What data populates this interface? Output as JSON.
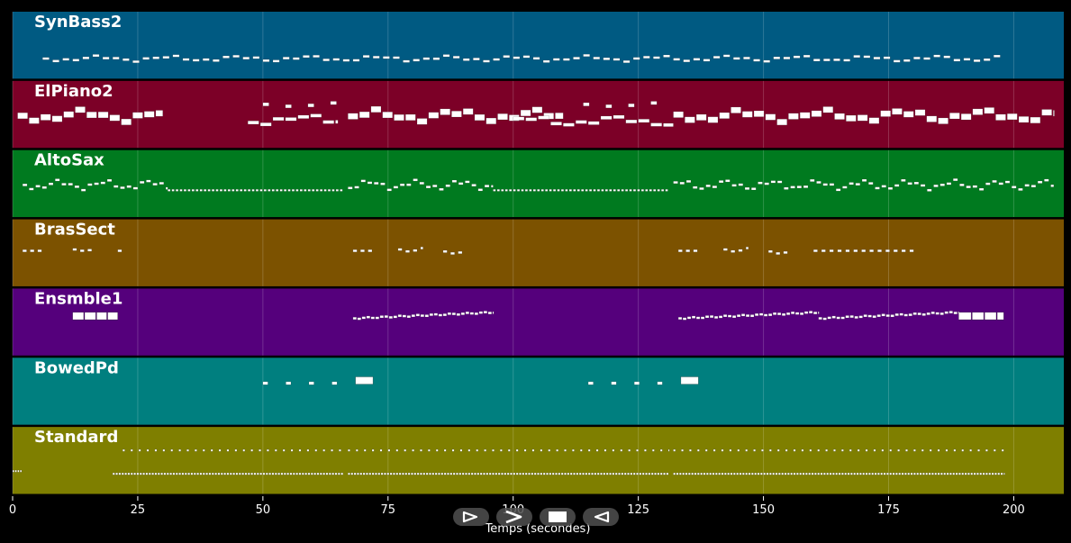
{
  "chart_data": {
    "type": "piano-roll",
    "xlabel": "Temps (secondes)",
    "xlim": [
      0,
      210
    ],
    "x_ticks": [
      0,
      25,
      50,
      75,
      100,
      125,
      150,
      175,
      200
    ],
    "grid": true,
    "tracks": [
      {
        "name": "SynBass2",
        "color": "#005a82",
        "segments": [
          {
            "start": 6,
            "end": 198,
            "style": "wave",
            "note_len": 1.3,
            "step": 2.0,
            "amp": 0.03,
            "center": 0.7,
            "h": 0.035
          }
        ],
        "blocks": []
      },
      {
        "name": "ElPiano2",
        "color": "#7c0027",
        "segments": [
          {
            "start": 1,
            "end": 30,
            "style": "wave",
            "note_len": 2.0,
            "step": 2.3,
            "amp": 0.06,
            "center": 0.52,
            "h": 0.09
          },
          {
            "start": 47,
            "end": 65,
            "style": "wave",
            "note_len": 2.2,
            "step": 2.5,
            "amp": 0.05,
            "center": 0.58,
            "h": 0.05
          },
          {
            "start": 50,
            "end": 65,
            "style": "sparse",
            "note_len": 1.2,
            "step": 4.5,
            "amp": 0.03,
            "center": 0.35,
            "h": 0.05
          },
          {
            "start": 67,
            "end": 110,
            "style": "wave",
            "note_len": 2.0,
            "step": 2.3,
            "amp": 0.06,
            "center": 0.52,
            "h": 0.09
          },
          {
            "start": 100,
            "end": 132,
            "style": "wave",
            "note_len": 2.2,
            "step": 2.5,
            "amp": 0.05,
            "center": 0.6,
            "h": 0.05
          },
          {
            "start": 114,
            "end": 130,
            "style": "sparse",
            "note_len": 1.2,
            "step": 4.5,
            "amp": 0.03,
            "center": 0.35,
            "h": 0.05
          },
          {
            "start": 132,
            "end": 208,
            "style": "wave",
            "note_len": 2.0,
            "step": 2.3,
            "amp": 0.06,
            "center": 0.52,
            "h": 0.09
          }
        ],
        "blocks": []
      },
      {
        "name": "AltoSax",
        "color": "#007a1f",
        "segments": [
          {
            "start": 2,
            "end": 31,
            "style": "wave",
            "note_len": 0.9,
            "step": 1.3,
            "amp": 0.05,
            "center": 0.52,
            "h": 0.035
          },
          {
            "start": 31,
            "end": 66,
            "style": "dense",
            "note_len": 0.5,
            "step": 0.8,
            "amp": 0.0,
            "center": 0.6,
            "h": 0.03
          },
          {
            "start": 67,
            "end": 96,
            "style": "wave",
            "note_len": 0.9,
            "step": 1.3,
            "amp": 0.05,
            "center": 0.52,
            "h": 0.035
          },
          {
            "start": 96,
            "end": 131,
            "style": "dense",
            "note_len": 0.5,
            "step": 0.8,
            "amp": 0.0,
            "center": 0.6,
            "h": 0.03
          },
          {
            "start": 132,
            "end": 208,
            "style": "wave",
            "note_len": 0.9,
            "step": 1.3,
            "amp": 0.05,
            "center": 0.52,
            "h": 0.035
          }
        ],
        "blocks": []
      },
      {
        "name": "BrasSect",
        "color": "#7c5200",
        "segments": [
          {
            "start": 2,
            "end": 6,
            "style": "sparse",
            "note_len": 0.8,
            "step": 1.5,
            "amp": 0.0,
            "center": 0.47,
            "h": 0.035
          },
          {
            "start": 12,
            "end": 16,
            "style": "sparse",
            "note_len": 0.8,
            "step": 1.5,
            "amp": 0.02,
            "center": 0.45,
            "h": 0.035
          },
          {
            "start": 21,
            "end": 22,
            "style": "sparse",
            "note_len": 0.8,
            "step": 1.5,
            "amp": 0.0,
            "center": 0.47,
            "h": 0.035
          },
          {
            "start": 68,
            "end": 72,
            "style": "sparse",
            "note_len": 0.8,
            "step": 1.5,
            "amp": 0.0,
            "center": 0.47,
            "h": 0.035
          },
          {
            "start": 77,
            "end": 82,
            "style": "sparse",
            "note_len": 0.8,
            "step": 1.5,
            "amp": 0.03,
            "center": 0.45,
            "h": 0.035
          },
          {
            "start": 86,
            "end": 90,
            "style": "sparse",
            "note_len": 0.8,
            "step": 1.5,
            "amp": 0.03,
            "center": 0.48,
            "h": 0.035
          },
          {
            "start": 133,
            "end": 137,
            "style": "sparse",
            "note_len": 0.8,
            "step": 1.5,
            "amp": 0.0,
            "center": 0.47,
            "h": 0.035
          },
          {
            "start": 142,
            "end": 147,
            "style": "sparse",
            "note_len": 0.8,
            "step": 1.5,
            "amp": 0.03,
            "center": 0.45,
            "h": 0.035
          },
          {
            "start": 151,
            "end": 155,
            "style": "sparse",
            "note_len": 0.8,
            "step": 1.5,
            "amp": 0.03,
            "center": 0.48,
            "h": 0.035
          },
          {
            "start": 160,
            "end": 180,
            "style": "sparse",
            "note_len": 0.8,
            "step": 1.6,
            "amp": 0.0,
            "center": 0.47,
            "h": 0.035
          }
        ],
        "blocks": []
      },
      {
        "name": "Ensmble1",
        "color": "#55007c",
        "segments": [
          {
            "start": 68,
            "end": 96,
            "style": "ramp",
            "note_len": 0.7,
            "step": 0.9,
            "amp": 0.09,
            "center": 0.4,
            "h": 0.035
          },
          {
            "start": 133,
            "end": 161,
            "style": "ramp",
            "note_len": 0.7,
            "step": 0.9,
            "amp": 0.09,
            "center": 0.4,
            "h": 0.035
          },
          {
            "start": 161,
            "end": 189,
            "style": "ramp",
            "note_len": 0.7,
            "step": 0.9,
            "amp": 0.09,
            "center": 0.4,
            "h": 0.035
          }
        ],
        "blocks": [
          {
            "start": 12,
            "end": 14.2,
            "center": 0.41,
            "h": 0.11
          },
          {
            "start": 14.4,
            "end": 16.6,
            "center": 0.41,
            "h": 0.11
          },
          {
            "start": 16.8,
            "end": 18.8,
            "center": 0.41,
            "h": 0.11
          },
          {
            "start": 19.0,
            "end": 21.0,
            "center": 0.41,
            "h": 0.11
          },
          {
            "start": 189,
            "end": 191.5,
            "center": 0.41,
            "h": 0.11
          },
          {
            "start": 191.7,
            "end": 194.0,
            "center": 0.41,
            "h": 0.11
          },
          {
            "start": 194.2,
            "end": 196.5,
            "center": 0.41,
            "h": 0.11
          },
          {
            "start": 196.7,
            "end": 198.0,
            "center": 0.41,
            "h": 0.11
          }
        ]
      },
      {
        "name": "BowedPd",
        "color": "#007f7f",
        "segments": [
          {
            "start": 50,
            "end": 68,
            "style": "sparse",
            "note_len": 1.0,
            "step": 4.6,
            "amp": 0.0,
            "center": 0.38,
            "h": 0.045
          },
          {
            "start": 115,
            "end": 133,
            "style": "sparse",
            "note_len": 1.0,
            "step": 4.6,
            "amp": 0.0,
            "center": 0.38,
            "h": 0.045
          }
        ],
        "blocks": [
          {
            "start": 68.5,
            "end": 72,
            "center": 0.34,
            "h": 0.11
          },
          {
            "start": 133.5,
            "end": 137,
            "center": 0.34,
            "h": 0.11
          }
        ]
      },
      {
        "name": "Standard",
        "color": "#7f7f00",
        "segments": [
          {
            "start": 0,
            "end": 2,
            "style": "dense",
            "note_len": 0.3,
            "step": 0.5,
            "amp": 0.0,
            "center": 0.66,
            "h": 0.03
          },
          {
            "start": 20,
            "end": 66,
            "style": "dense",
            "note_len": 0.4,
            "step": 0.6,
            "amp": 0.0,
            "center": 0.7,
            "h": 0.03
          },
          {
            "start": 22,
            "end": 66,
            "style": "sparse",
            "note_len": 0.4,
            "step": 1.6,
            "amp": 0.0,
            "center": 0.35,
            "h": 0.03
          },
          {
            "start": 67,
            "end": 131,
            "style": "dense",
            "note_len": 0.4,
            "step": 0.6,
            "amp": 0.0,
            "center": 0.7,
            "h": 0.03
          },
          {
            "start": 67,
            "end": 131,
            "style": "sparse",
            "note_len": 0.4,
            "step": 1.6,
            "amp": 0.0,
            "center": 0.35,
            "h": 0.03
          },
          {
            "start": 132,
            "end": 198,
            "style": "dense",
            "note_len": 0.4,
            "step": 0.6,
            "amp": 0.0,
            "center": 0.7,
            "h": 0.03
          },
          {
            "start": 132,
            "end": 198,
            "style": "sparse",
            "note_len": 0.4,
            "step": 1.6,
            "amp": 0.0,
            "center": 0.35,
            "h": 0.03
          }
        ],
        "blocks": []
      }
    ]
  },
  "controls": [
    {
      "name": "play-outline-button",
      "icon": "play-outline-icon"
    },
    {
      "name": "next-button",
      "icon": "chevron-right-icon"
    },
    {
      "name": "stop-button",
      "icon": "stop-icon"
    },
    {
      "name": "rewind-button",
      "icon": "triangle-left-outline-icon"
    }
  ]
}
